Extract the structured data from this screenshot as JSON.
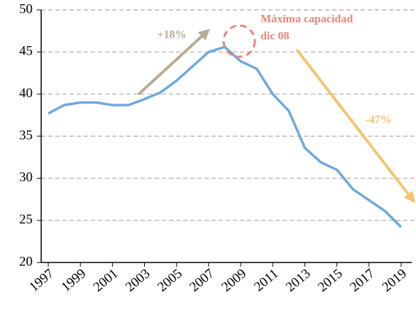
{
  "chart_data": {
    "type": "line",
    "x": [
      1997,
      1998,
      1999,
      2000,
      2001,
      2002,
      2003,
      2004,
      2005,
      2006,
      2007,
      2008,
      2009,
      2010,
      2011,
      2012,
      2013,
      2014,
      2015,
      2016,
      2017,
      2018,
      2019
    ],
    "series": [
      {
        "name": null,
        "color": "#6fa8dc",
        "values": [
          37.7,
          38.7,
          39.0,
          39.0,
          38.7,
          38.7,
          39.4,
          40.2,
          41.6,
          43.3,
          45.0,
          45.6,
          43.9,
          43.0,
          40.0,
          38.0,
          33.6,
          31.9,
          31.0,
          28.7,
          27.4,
          26.1,
          24.2
        ]
      }
    ],
    "xlim": [
      1997,
      2019
    ],
    "xticks": [
      1997,
      1999,
      2001,
      2003,
      2005,
      2007,
      2009,
      2011,
      2013,
      2015,
      2017,
      2019
    ],
    "ylim": [
      20,
      50
    ],
    "yticks": [
      20,
      25,
      30,
      35,
      40,
      45,
      50
    ],
    "grid": true,
    "annotations": [
      {
        "text": "+18%",
        "color": "#b8ab92"
      },
      {
        "text": "Máxima capacidad",
        "color": "#e8877a"
      },
      {
        "text": "dic 08",
        "color": "#e8877a"
      },
      {
        "text": "-47%",
        "color": "#f5c46e"
      }
    ]
  }
}
